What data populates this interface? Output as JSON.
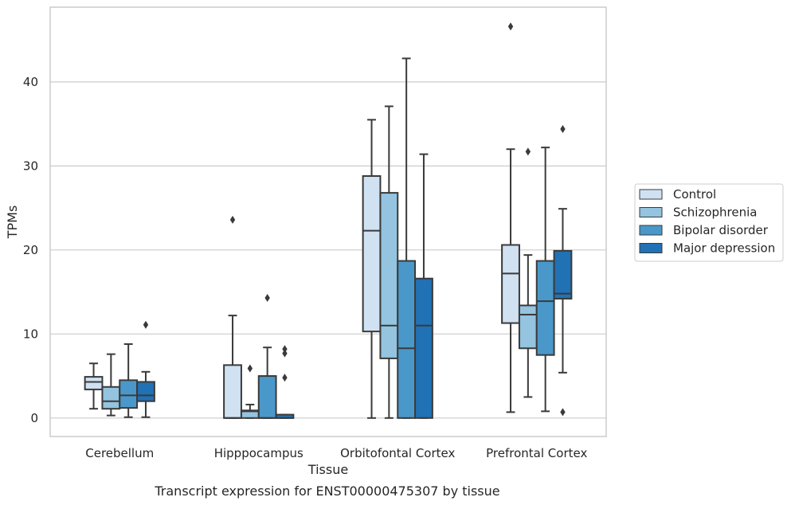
{
  "chart_data": {
    "type": "box",
    "caption": "Transcript expression for ENST00000475307 by tissue",
    "xlabel": "Tissue",
    "ylabel": "TPMs",
    "ylim": [
      -2.2,
      48.9
    ],
    "yticks": [
      0,
      10,
      20,
      30,
      40
    ],
    "grid": "horizontal",
    "legend_position": "right",
    "categories": [
      "Cerebellum",
      "Hipppocampus",
      "Orbitofontal Cortex",
      "Prefrontal Cortex"
    ],
    "series": [
      {
        "name": "Control",
        "color": "#d0e1f2",
        "boxes": [
          {
            "min": 1.1,
            "q1": 3.4,
            "median": 4.3,
            "q3": 4.9,
            "max": 6.5,
            "outliers": []
          },
          {
            "min": 0.0,
            "q1": 0.0,
            "median": 0.0,
            "q3": 6.3,
            "max": 12.2,
            "outliers": [
              23.6
            ]
          },
          {
            "min": 0.0,
            "q1": 10.3,
            "median": 22.3,
            "q3": 28.8,
            "max": 35.5,
            "outliers": []
          },
          {
            "min": 0.7,
            "q1": 11.3,
            "median": 17.2,
            "q3": 20.6,
            "max": 32.0,
            "outliers": [
              46.6
            ]
          }
        ]
      },
      {
        "name": "Schizophrenia",
        "color": "#94c4df",
        "boxes": [
          {
            "min": 0.3,
            "q1": 1.1,
            "median": 2.0,
            "q3": 3.7,
            "max": 7.6,
            "outliers": []
          },
          {
            "min": 0.0,
            "q1": 0.0,
            "median": 0.8,
            "q3": 0.9,
            "max": 1.6,
            "outliers": [
              5.9
            ]
          },
          {
            "min": 0.0,
            "q1": 7.1,
            "median": 11.0,
            "q3": 26.8,
            "max": 37.1,
            "outliers": []
          },
          {
            "min": 2.5,
            "q1": 8.3,
            "median": 12.3,
            "q3": 13.4,
            "max": 19.4,
            "outliers": [
              31.7
            ]
          }
        ]
      },
      {
        "name": "Bipolar disorder",
        "color": "#4a98c9",
        "boxes": [
          {
            "min": 0.1,
            "q1": 1.2,
            "median": 2.7,
            "q3": 4.5,
            "max": 8.8,
            "outliers": []
          },
          {
            "min": 0.0,
            "q1": 0.0,
            "median": 0.0,
            "q3": 5.0,
            "max": 8.4,
            "outliers": [
              14.3
            ]
          },
          {
            "min": 0.0,
            "q1": 0.0,
            "median": 8.3,
            "q3": 18.7,
            "max": 42.8,
            "outliers": []
          },
          {
            "min": 0.8,
            "q1": 7.5,
            "median": 13.9,
            "q3": 18.7,
            "max": 32.2,
            "outliers": []
          }
        ]
      },
      {
        "name": "Major depression",
        "color": "#2171b5",
        "boxes": [
          {
            "min": 0.1,
            "q1": 2.0,
            "median": 2.7,
            "q3": 4.3,
            "max": 5.5,
            "outliers": [
              11.1
            ]
          },
          {
            "min": 0.0,
            "q1": 0.0,
            "median": 0.0,
            "q3": 0.4,
            "max": 0.4,
            "outliers": [
              8.2,
              7.7,
              4.8
            ]
          },
          {
            "min": 0.0,
            "q1": 0.0,
            "median": 11.0,
            "q3": 16.6,
            "max": 31.4,
            "outliers": []
          },
          {
            "min": 5.4,
            "q1": 14.2,
            "median": 14.8,
            "q3": 19.9,
            "max": 24.9,
            "outliers": [
              34.4,
              0.7
            ]
          }
        ]
      }
    ]
  }
}
